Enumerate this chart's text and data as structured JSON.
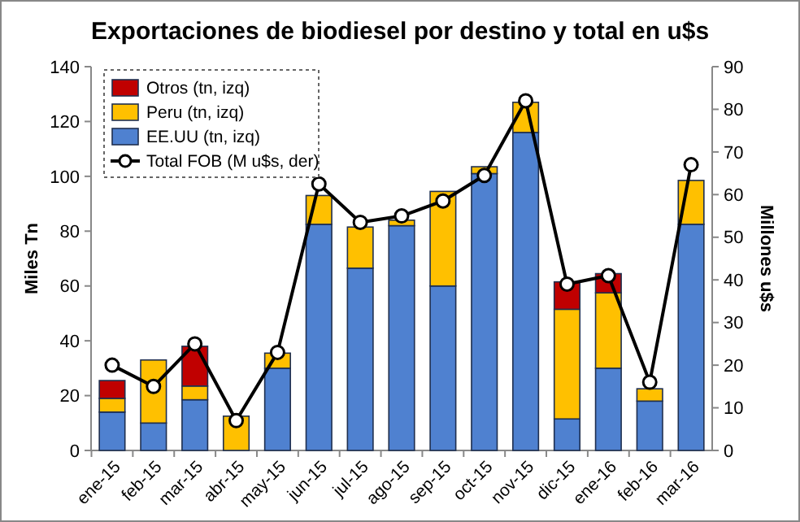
{
  "chart_data": {
    "type": "bar",
    "title": "Exportaciones de biodiesel por destino y total en u$s",
    "ylabel": "Miles Tn",
    "y2label": "Millones u$s",
    "categories": [
      "ene-15",
      "feb-15",
      "mar-15",
      "abr-15",
      "may-15",
      "jun-15",
      "jul-15",
      "ago-15",
      "sep-15",
      "oct-15",
      "nov-15",
      "dic-15",
      "ene-16",
      "feb-16",
      "mar-16"
    ],
    "stacked": true,
    "legend": "top left",
    "grid": false,
    "ylim": [
      0,
      140
    ],
    "yticks": [
      0,
      20,
      40,
      60,
      80,
      100,
      120,
      140
    ],
    "y2lim": [
      0,
      90
    ],
    "y2ticks": [
      0,
      10,
      20,
      30,
      40,
      50,
      60,
      70,
      80,
      90
    ],
    "series": [
      {
        "name": "EE.UU (tn, izq)",
        "color": "#4f81d0",
        "values": [
          14,
          10,
          18.5,
          0,
          30,
          82.5,
          66.5,
          82,
          60,
          101,
          116,
          11.5,
          30,
          18,
          82.5
        ]
      },
      {
        "name": "Peru (tn, izq)",
        "color": "#ffc000",
        "values": [
          5,
          23,
          5,
          12.5,
          5.5,
          10.5,
          15,
          2,
          34.5,
          2.5,
          11,
          40,
          27.5,
          4.5,
          16
        ]
      },
      {
        "name": "Otros (tn, izq)",
        "color": "#c00000",
        "values": [
          6.5,
          0,
          14.5,
          0,
          0,
          0,
          0,
          0,
          0,
          0,
          0,
          10,
          7,
          0,
          0
        ]
      },
      {
        "name": "Total FOB (M u$s, der)",
        "type": "line",
        "axis": "y2",
        "color": "#000000",
        "marker": "circle",
        "values": [
          20,
          15,
          25,
          7,
          23,
          62.5,
          53.5,
          55,
          58.5,
          64.5,
          82,
          39,
          41,
          16,
          67
        ]
      }
    ]
  }
}
